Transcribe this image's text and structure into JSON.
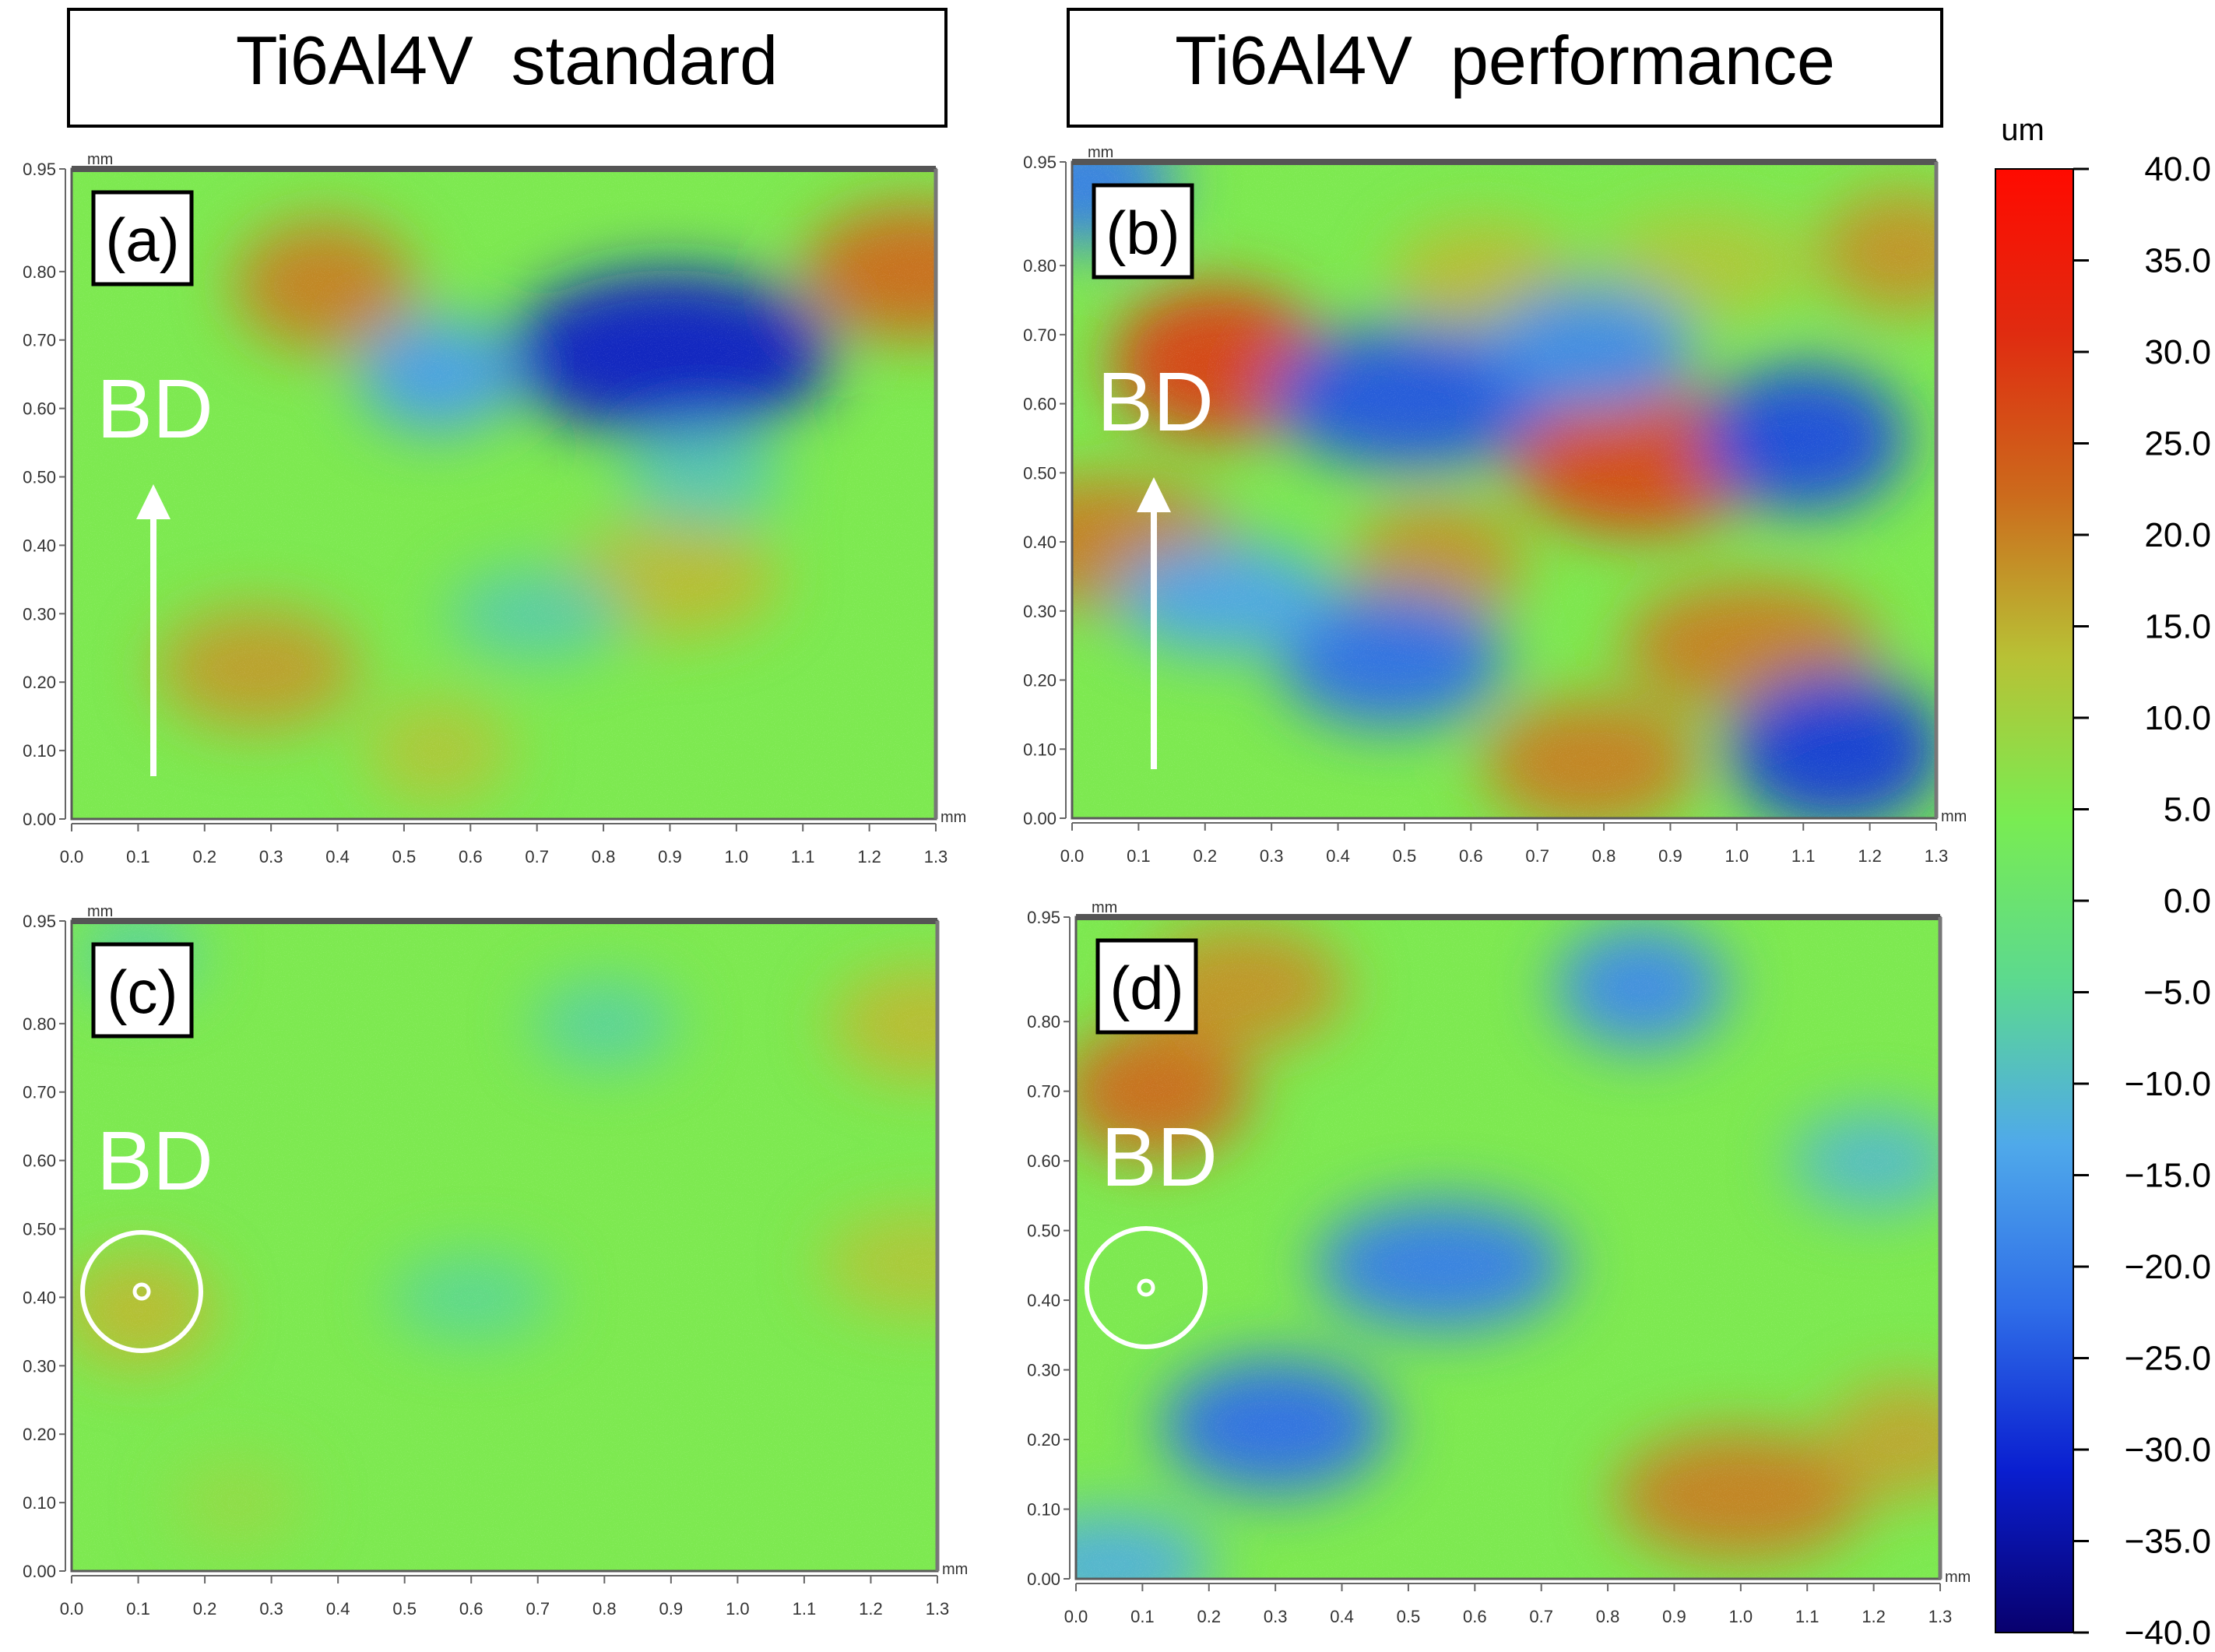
{
  "headers": {
    "left": "Ti6Al4V  standard",
    "right": "Ti6Al4V  performance"
  },
  "colorbar": {
    "unit": "um",
    "ticks": [
      "40.0",
      "35.0",
      "30.0",
      "25.0",
      "20.0",
      "15.0",
      "10.0",
      "5.0",
      "0.0",
      "−5.0",
      "−10.0",
      "−15.0",
      "−20.0",
      "−25.0",
      "−30.0",
      "−35.0",
      "−40.0"
    ],
    "colors": [
      "#08006e",
      "#0a1fd0",
      "#2f6ee8",
      "#4fa9ea",
      "#5cd98f",
      "#79ec52",
      "#b8c135",
      "#cc6a1c",
      "#e02b10",
      "#ff0a00"
    ]
  },
  "chart_data": [
    {
      "type": "heatmap",
      "panel_label": "(a)",
      "direction_label": "BD",
      "direction_marker": "arrow",
      "x_unit": "mm",
      "y_unit": "mm",
      "xlim": [
        0.0,
        1.3
      ],
      "ylim": [
        0.0,
        0.95
      ],
      "xticks": [
        "0.0",
        "0.1",
        "0.2",
        "0.3",
        "0.4",
        "0.5",
        "0.6",
        "0.7",
        "0.8",
        "0.9",
        "1.0",
        "1.1",
        "1.2",
        "1.3"
      ],
      "yticks": [
        "0.00",
        "0.10",
        "0.20",
        "0.30",
        "0.40",
        "0.50",
        "0.60",
        "0.70",
        "0.80",
        "0.95"
      ],
      "value_range_um": [
        -40,
        40
      ],
      "features": [
        {
          "x": 0.38,
          "y": 0.78,
          "value": 20
        },
        {
          "x": 1.27,
          "y": 0.8,
          "value": 22
        },
        {
          "x": 0.9,
          "y": 0.68,
          "value": -32
        },
        {
          "x": 0.55,
          "y": 0.65,
          "value": -15
        },
        {
          "x": 0.28,
          "y": 0.22,
          "value": 17
        },
        {
          "x": 0.9,
          "y": 0.35,
          "value": 14
        },
        {
          "x": 0.55,
          "y": 0.1,
          "value": 12
        },
        {
          "x": 0.95,
          "y": 0.5,
          "value": -8
        },
        {
          "x": 0.7,
          "y": 0.3,
          "value": -7
        }
      ]
    },
    {
      "type": "heatmap",
      "panel_label": "(b)",
      "direction_label": "BD",
      "direction_marker": "arrow",
      "x_unit": "mm",
      "y_unit": "mm",
      "xlim": [
        0.0,
        1.3
      ],
      "ylim": [
        0.0,
        0.95
      ],
      "xticks": [
        "0.0",
        "0.1",
        "0.2",
        "0.3",
        "0.4",
        "0.5",
        "0.6",
        "0.7",
        "0.8",
        "0.9",
        "1.0",
        "1.1",
        "1.2",
        "1.3"
      ],
      "yticks": [
        "0.00",
        "0.10",
        "0.20",
        "0.30",
        "0.40",
        "0.50",
        "0.60",
        "0.70",
        "0.80",
        "0.95"
      ],
      "value_range_um": [
        -40,
        40
      ],
      "features": [
        {
          "x": 0.22,
          "y": 0.66,
          "value": 28
        },
        {
          "x": 0.85,
          "y": 0.52,
          "value": 27
        },
        {
          "x": 0.05,
          "y": 0.4,
          "value": 20
        },
        {
          "x": 0.55,
          "y": 0.37,
          "value": 18
        },
        {
          "x": 0.78,
          "y": 0.08,
          "value": 20
        },
        {
          "x": 1.02,
          "y": 0.25,
          "value": 20
        },
        {
          "x": 1.25,
          "y": 0.82,
          "value": 18
        },
        {
          "x": 0.62,
          "y": 0.78,
          "value": 14
        },
        {
          "x": 0.95,
          "y": 0.8,
          "value": 12
        },
        {
          "x": 1.15,
          "y": 0.1,
          "value": -28
        },
        {
          "x": 0.48,
          "y": 0.23,
          "value": -22
        },
        {
          "x": 0.51,
          "y": 0.61,
          "value": -25
        },
        {
          "x": 1.1,
          "y": 0.55,
          "value": -26
        },
        {
          "x": 0.78,
          "y": 0.68,
          "value": -18
        },
        {
          "x": 0.23,
          "y": 0.32,
          "value": -14
        },
        {
          "x": 0.02,
          "y": 0.92,
          "value": -20
        }
      ]
    },
    {
      "type": "heatmap",
      "panel_label": "(c)",
      "direction_label": "BD",
      "direction_marker": "circle",
      "x_unit": "mm",
      "y_unit": "mm",
      "xlim": [
        0.0,
        1.3
      ],
      "ylim": [
        0.0,
        0.95
      ],
      "xticks": [
        "0.0",
        "0.1",
        "0.2",
        "0.3",
        "0.4",
        "0.5",
        "0.6",
        "0.7",
        "0.8",
        "0.9",
        "1.0",
        "1.1",
        "1.2",
        "1.3"
      ],
      "yticks": [
        "0.00",
        "0.10",
        "0.20",
        "0.30",
        "0.40",
        "0.50",
        "0.60",
        "0.70",
        "0.80",
        "0.95"
      ],
      "value_range_um": [
        -40,
        40
      ],
      "features": [
        {
          "x": 0.1,
          "y": 0.38,
          "value": 14
        },
        {
          "x": 1.28,
          "y": 0.8,
          "value": 14
        },
        {
          "x": 1.28,
          "y": 0.45,
          "value": 12
        },
        {
          "x": 0.25,
          "y": 0.1,
          "value": 8
        },
        {
          "x": 0.8,
          "y": 0.8,
          "value": -6
        },
        {
          "x": 0.6,
          "y": 0.4,
          "value": -5
        },
        {
          "x": 0.1,
          "y": 0.9,
          "value": -6
        }
      ]
    },
    {
      "type": "heatmap",
      "panel_label": "(d)",
      "direction_label": "BD",
      "direction_marker": "circle",
      "x_unit": "mm",
      "y_unit": "mm",
      "xlim": [
        0.0,
        1.3
      ],
      "ylim": [
        0.0,
        0.95
      ],
      "xticks": [
        "0.0",
        "0.1",
        "0.2",
        "0.3",
        "0.4",
        "0.5",
        "0.6",
        "0.7",
        "0.8",
        "0.9",
        "1.0",
        "1.1",
        "1.2",
        "1.3"
      ],
      "yticks": [
        "0.00",
        "0.10",
        "0.20",
        "0.30",
        "0.40",
        "0.50",
        "0.60",
        "0.70",
        "0.80",
        "0.95"
      ],
      "value_range_um": [
        -40,
        40
      ],
      "features": [
        {
          "x": 0.12,
          "y": 0.7,
          "value": 22
        },
        {
          "x": 0.25,
          "y": 0.85,
          "value": 18
        },
        {
          "x": 1.0,
          "y": 0.12,
          "value": 20
        },
        {
          "x": 1.25,
          "y": 0.2,
          "value": 16
        },
        {
          "x": 0.3,
          "y": 0.22,
          "value": -22
        },
        {
          "x": 0.55,
          "y": 0.45,
          "value": -20
        },
        {
          "x": 0.85,
          "y": 0.85,
          "value": -18
        },
        {
          "x": 1.2,
          "y": 0.6,
          "value": -10
        },
        {
          "x": 0.05,
          "y": 0.02,
          "value": -12
        }
      ]
    }
  ]
}
